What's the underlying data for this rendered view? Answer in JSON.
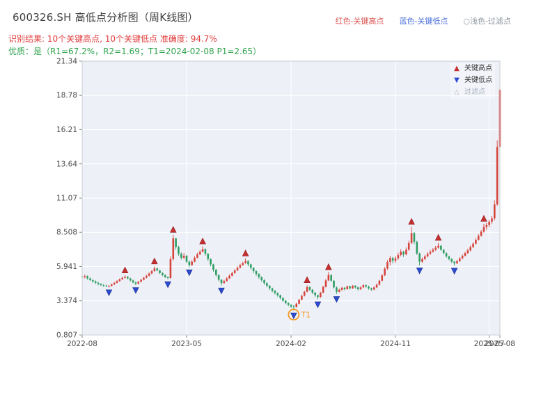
{
  "page": {
    "title": "600326.SH 高低点分析图（周K线图）",
    "top_legend": [
      {
        "label": "红色-关键高点",
        "color": "#d9534f"
      },
      {
        "label": "蓝色-关键低点",
        "color": "#4a6fdc"
      },
      {
        "label": "○浅色-过滤点",
        "color": "#8a949e"
      }
    ],
    "result_line": "识别结果: 10个关键高点, 10个关键低点  准确度: 94.7%",
    "result_color": "#e23b3b",
    "quality_line": "优质：是（R1=67.2%，R2=1.69；T1=2024-02-08 P1=2.65）",
    "quality_color": "#2fa34c"
  },
  "chart_legend": {
    "high": "关键高点",
    "low": "关键低点",
    "filtered": "过滤点"
  },
  "icons": {
    "key_high": "▲",
    "key_low": "▼",
    "filtered": "△"
  },
  "chart_data": {
    "type": "candlestick",
    "title": "600326.SH 高低点分析图（周K线图）",
    "timeframe": "weekly",
    "ylim": [
      0.807,
      21.34
    ],
    "y_ticks": [
      "0.807",
      "3.374",
      "5.941",
      "8.508",
      "11.07",
      "13.64",
      "16.21",
      "18.78",
      "21.34"
    ],
    "weeks_total": 156,
    "x_ticks": [
      {
        "week": 0,
        "label": "2022-08"
      },
      {
        "week": 39,
        "label": "2023-05"
      },
      {
        "week": 78,
        "label": "2024-02"
      },
      {
        "week": 117,
        "label": "2024-11"
      },
      {
        "week": 152,
        "label": "2025-07"
      },
      {
        "week": 156,
        "label": "2025-08"
      }
    ],
    "candles_format": [
      "open",
      "high",
      "low",
      "close"
    ],
    "candles": [
      [
        5.2,
        5.45,
        5.02,
        5.15
      ],
      [
        5.15,
        5.35,
        5.05,
        5.22
      ],
      [
        5.22,
        5.28,
        4.95,
        5.05
      ],
      [
        5.05,
        5.12,
        4.84,
        4.92
      ],
      [
        4.92,
        5.0,
        4.73,
        4.82
      ],
      [
        4.82,
        4.9,
        4.63,
        4.72
      ],
      [
        4.72,
        4.8,
        4.54,
        4.62
      ],
      [
        4.62,
        4.7,
        4.47,
        4.55
      ],
      [
        4.55,
        4.63,
        4.42,
        4.5
      ],
      [
        4.5,
        4.58,
        4.4,
        4.45
      ],
      [
        4.45,
        4.55,
        4.38,
        4.48
      ],
      [
        4.48,
        4.66,
        4.44,
        4.6
      ],
      [
        4.6,
        4.78,
        4.55,
        4.72
      ],
      [
        4.72,
        4.92,
        4.68,
        4.85
      ],
      [
        4.85,
        5.05,
        4.8,
        4.98
      ],
      [
        4.98,
        5.18,
        4.93,
        5.1
      ],
      [
        5.1,
        5.28,
        5.02,
        5.18
      ],
      [
        5.18,
        5.22,
        4.98,
        5.05
      ],
      [
        5.05,
        5.1,
        4.82,
        4.9
      ],
      [
        4.9,
        4.96,
        4.68,
        4.75
      ],
      [
        4.75,
        4.82,
        4.55,
        4.65
      ],
      [
        4.65,
        4.86,
        4.6,
        4.8
      ],
      [
        4.8,
        5.02,
        4.75,
        4.95
      ],
      [
        4.95,
        5.16,
        4.9,
        5.1
      ],
      [
        5.1,
        5.32,
        5.05,
        5.25
      ],
      [
        5.25,
        5.5,
        5.2,
        5.42
      ],
      [
        5.42,
        5.68,
        5.36,
        5.6
      ],
      [
        5.6,
        5.95,
        5.55,
        5.8
      ],
      [
        5.8,
        5.85,
        5.58,
        5.65
      ],
      [
        5.65,
        5.7,
        5.38,
        5.45
      ],
      [
        5.45,
        5.52,
        5.22,
        5.3
      ],
      [
        5.3,
        5.36,
        5.08,
        5.15
      ],
      [
        5.15,
        5.2,
        4.98,
        5.08
      ],
      [
        5.08,
        6.7,
        5.02,
        6.5
      ],
      [
        6.5,
        8.32,
        6.4,
        8.05
      ],
      [
        8.05,
        8.1,
        7.2,
        7.4
      ],
      [
        7.4,
        7.5,
        6.75,
        6.9
      ],
      [
        6.9,
        7.0,
        6.45,
        6.6
      ],
      [
        6.6,
        6.95,
        6.5,
        6.75
      ],
      [
        6.75,
        6.8,
        6.2,
        6.3
      ],
      [
        6.3,
        6.38,
        5.88,
        6.05
      ],
      [
        6.05,
        6.42,
        6.0,
        6.3
      ],
      [
        6.3,
        6.72,
        6.25,
        6.6
      ],
      [
        6.6,
        6.98,
        6.55,
        6.85
      ],
      [
        6.85,
        7.18,
        6.8,
        7.05
      ],
      [
        7.05,
        7.45,
        7.0,
        7.25
      ],
      [
        7.25,
        7.3,
        6.75,
        6.9
      ],
      [
        6.9,
        6.95,
        6.35,
        6.5
      ],
      [
        6.5,
        6.56,
        5.95,
        6.1
      ],
      [
        6.1,
        6.15,
        5.55,
        5.7
      ],
      [
        5.7,
        5.76,
        5.18,
        5.3
      ],
      [
        5.3,
        5.36,
        4.82,
        4.95
      ],
      [
        4.95,
        5.0,
        4.52,
        4.7
      ],
      [
        4.7,
        4.95,
        4.65,
        4.85
      ],
      [
        4.85,
        5.15,
        4.8,
        5.05
      ],
      [
        5.05,
        5.35,
        5.0,
        5.25
      ],
      [
        5.25,
        5.55,
        5.2,
        5.45
      ],
      [
        5.45,
        5.75,
        5.4,
        5.65
      ],
      [
        5.65,
        5.95,
        5.6,
        5.85
      ],
      [
        5.85,
        6.15,
        5.8,
        6.05
      ],
      [
        6.05,
        6.3,
        6.0,
        6.2
      ],
      [
        6.2,
        6.55,
        6.15,
        6.35
      ],
      [
        6.35,
        6.4,
        5.95,
        6.1
      ],
      [
        6.1,
        6.15,
        5.7,
        5.85
      ],
      [
        5.85,
        5.9,
        5.45,
        5.6
      ],
      [
        5.6,
        5.66,
        5.25,
        5.38
      ],
      [
        5.38,
        5.44,
        5.02,
        5.15
      ],
      [
        5.15,
        5.2,
        4.8,
        4.92
      ],
      [
        4.92,
        4.98,
        4.58,
        4.7
      ],
      [
        4.7,
        4.76,
        4.38,
        4.5
      ],
      [
        4.5,
        4.56,
        4.18,
        4.3
      ],
      [
        4.3,
        4.36,
        4.0,
        4.12
      ],
      [
        4.12,
        4.18,
        3.85,
        3.95
      ],
      [
        3.95,
        4.0,
        3.68,
        3.78
      ],
      [
        3.78,
        3.84,
        3.48,
        3.58
      ],
      [
        3.58,
        3.64,
        3.28,
        3.38
      ],
      [
        3.38,
        3.44,
        3.1,
        3.2
      ],
      [
        3.2,
        3.26,
        2.96,
        3.06
      ],
      [
        3.06,
        3.12,
        2.84,
        2.94
      ],
      [
        2.94,
        3.05,
        2.65,
        2.9
      ],
      [
        2.9,
        3.22,
        2.86,
        3.15
      ],
      [
        3.15,
        3.52,
        3.1,
        3.45
      ],
      [
        3.45,
        3.82,
        3.4,
        3.75
      ],
      [
        3.75,
        4.12,
        3.7,
        4.05
      ],
      [
        4.05,
        4.55,
        4.0,
        4.4
      ],
      [
        4.4,
        4.46,
        4.1,
        4.2
      ],
      [
        4.2,
        4.26,
        3.88,
        3.98
      ],
      [
        3.98,
        4.04,
        3.66,
        3.78
      ],
      [
        3.78,
        3.84,
        3.48,
        3.65
      ],
      [
        3.65,
        4.05,
        3.6,
        3.98
      ],
      [
        3.98,
        4.5,
        3.93,
        4.42
      ],
      [
        4.42,
        5.0,
        4.37,
        4.9
      ],
      [
        4.9,
        5.52,
        4.85,
        5.3
      ],
      [
        5.3,
        5.36,
        4.78,
        4.88
      ],
      [
        4.88,
        4.94,
        4.28,
        4.38
      ],
      [
        4.38,
        4.44,
        3.88,
        4.05
      ],
      [
        4.05,
        4.28,
        4.0,
        4.2
      ],
      [
        4.2,
        4.42,
        4.12,
        4.35
      ],
      [
        4.35,
        4.4,
        4.15,
        4.25
      ],
      [
        4.25,
        4.52,
        4.2,
        4.45
      ],
      [
        4.45,
        4.5,
        4.22,
        4.3
      ],
      [
        4.3,
        4.56,
        4.25,
        4.5
      ],
      [
        4.5,
        4.55,
        4.28,
        4.38
      ],
      [
        4.38,
        4.44,
        4.14,
        4.24
      ],
      [
        4.24,
        4.46,
        4.18,
        4.38
      ],
      [
        4.38,
        4.62,
        4.32,
        4.55
      ],
      [
        4.55,
        4.6,
        4.34,
        4.44
      ],
      [
        4.44,
        4.5,
        4.2,
        4.3
      ],
      [
        4.3,
        4.36,
        4.1,
        4.22
      ],
      [
        4.22,
        4.45,
        4.16,
        4.38
      ],
      [
        4.38,
        4.66,
        4.32,
        4.58
      ],
      [
        4.58,
        4.95,
        4.52,
        4.88
      ],
      [
        4.88,
        5.38,
        4.82,
        5.28
      ],
      [
        5.28,
        5.9,
        5.22,
        5.78
      ],
      [
        5.78,
        6.42,
        5.7,
        6.28
      ],
      [
        6.28,
        6.72,
        6.05,
        6.58
      ],
      [
        6.58,
        6.66,
        6.18,
        6.38
      ],
      [
        6.38,
        6.7,
        6.22,
        6.55
      ],
      [
        6.55,
        6.98,
        6.45,
        6.8
      ],
      [
        6.8,
        7.25,
        6.7,
        7.05
      ],
      [
        7.05,
        7.12,
        6.66,
        6.85
      ],
      [
        6.85,
        7.38,
        6.78,
        7.2
      ],
      [
        7.2,
        7.88,
        7.12,
        7.7
      ],
      [
        7.7,
        8.92,
        7.62,
        8.45
      ],
      [
        8.45,
        8.52,
        7.62,
        7.8
      ],
      [
        7.8,
        7.88,
        6.8,
        6.92
      ],
      [
        6.92,
        6.98,
        6.02,
        6.3
      ],
      [
        6.3,
        6.62,
        6.22,
        6.5
      ],
      [
        6.5,
        6.82,
        6.42,
        6.7
      ],
      [
        6.7,
        7.02,
        6.62,
        6.9
      ],
      [
        6.9,
        7.18,
        6.82,
        7.05
      ],
      [
        7.05,
        7.32,
        6.98,
        7.2
      ],
      [
        7.2,
        7.48,
        7.12,
        7.35
      ],
      [
        7.35,
        7.72,
        7.28,
        7.5
      ],
      [
        7.5,
        7.55,
        7.1,
        7.2
      ],
      [
        7.2,
        7.26,
        6.85,
        6.95
      ],
      [
        6.95,
        7.0,
        6.6,
        6.7
      ],
      [
        6.7,
        6.76,
        6.4,
        6.5
      ],
      [
        6.5,
        6.56,
        6.2,
        6.3
      ],
      [
        6.3,
        6.36,
        6.0,
        6.18
      ],
      [
        6.18,
        6.45,
        6.12,
        6.35
      ],
      [
        6.35,
        6.65,
        6.28,
        6.55
      ],
      [
        6.55,
        6.85,
        6.48,
        6.75
      ],
      [
        6.75,
        7.05,
        6.68,
        6.95
      ],
      [
        6.95,
        7.28,
        6.88,
        7.15
      ],
      [
        7.15,
        7.52,
        7.08,
        7.4
      ],
      [
        7.4,
        7.78,
        7.32,
        7.65
      ],
      [
        7.65,
        8.08,
        7.58,
        7.95
      ],
      [
        7.95,
        8.38,
        7.88,
        8.25
      ],
      [
        8.25,
        8.68,
        8.18,
        8.55
      ],
      [
        8.55,
        9.15,
        8.48,
        8.9
      ],
      [
        8.9,
        9.22,
        8.7,
        9.05
      ],
      [
        9.05,
        9.45,
        8.88,
        9.3
      ],
      [
        9.3,
        9.72,
        9.12,
        9.55
      ],
      [
        9.55,
        10.9,
        9.4,
        10.6
      ],
      [
        10.6,
        15.4,
        10.5,
        14.9
      ],
      [
        14.9,
        19.78,
        14.6,
        19.2
      ]
    ],
    "key_highs": [
      [
        16,
        5.28
      ],
      [
        27,
        5.95
      ],
      [
        34,
        8.32
      ],
      [
        45,
        7.45
      ],
      [
        61,
        6.55
      ],
      [
        84,
        4.55
      ],
      [
        92,
        5.52
      ],
      [
        123,
        8.92
      ],
      [
        133,
        7.72
      ],
      [
        150,
        9.15
      ]
    ],
    "key_lows": [
      [
        10,
        4.38
      ],
      [
        20,
        4.55
      ],
      [
        32,
        4.98
      ],
      [
        40,
        5.88
      ],
      [
        52,
        4.52
      ],
      [
        79,
        2.65
      ],
      [
        88,
        3.48
      ],
      [
        95,
        3.88
      ],
      [
        126,
        6.02
      ],
      [
        139,
        6.0
      ]
    ],
    "t1": {
      "week": 79,
      "price": 2.65,
      "label": "T1",
      "date": "2024-02-08"
    },
    "colors": {
      "up": "#d6453c",
      "down": "#2f9e62",
      "high_marker": "#c62f2f",
      "low_marker": "#2b4bd1",
      "filtered_marker": "#aab2bd",
      "t1": "#f59a23",
      "plot_bg": "#eef0f8",
      "grid": "#ffffff",
      "axis_text": "#4a4a4a",
      "border": "#c9ccd4"
    }
  }
}
